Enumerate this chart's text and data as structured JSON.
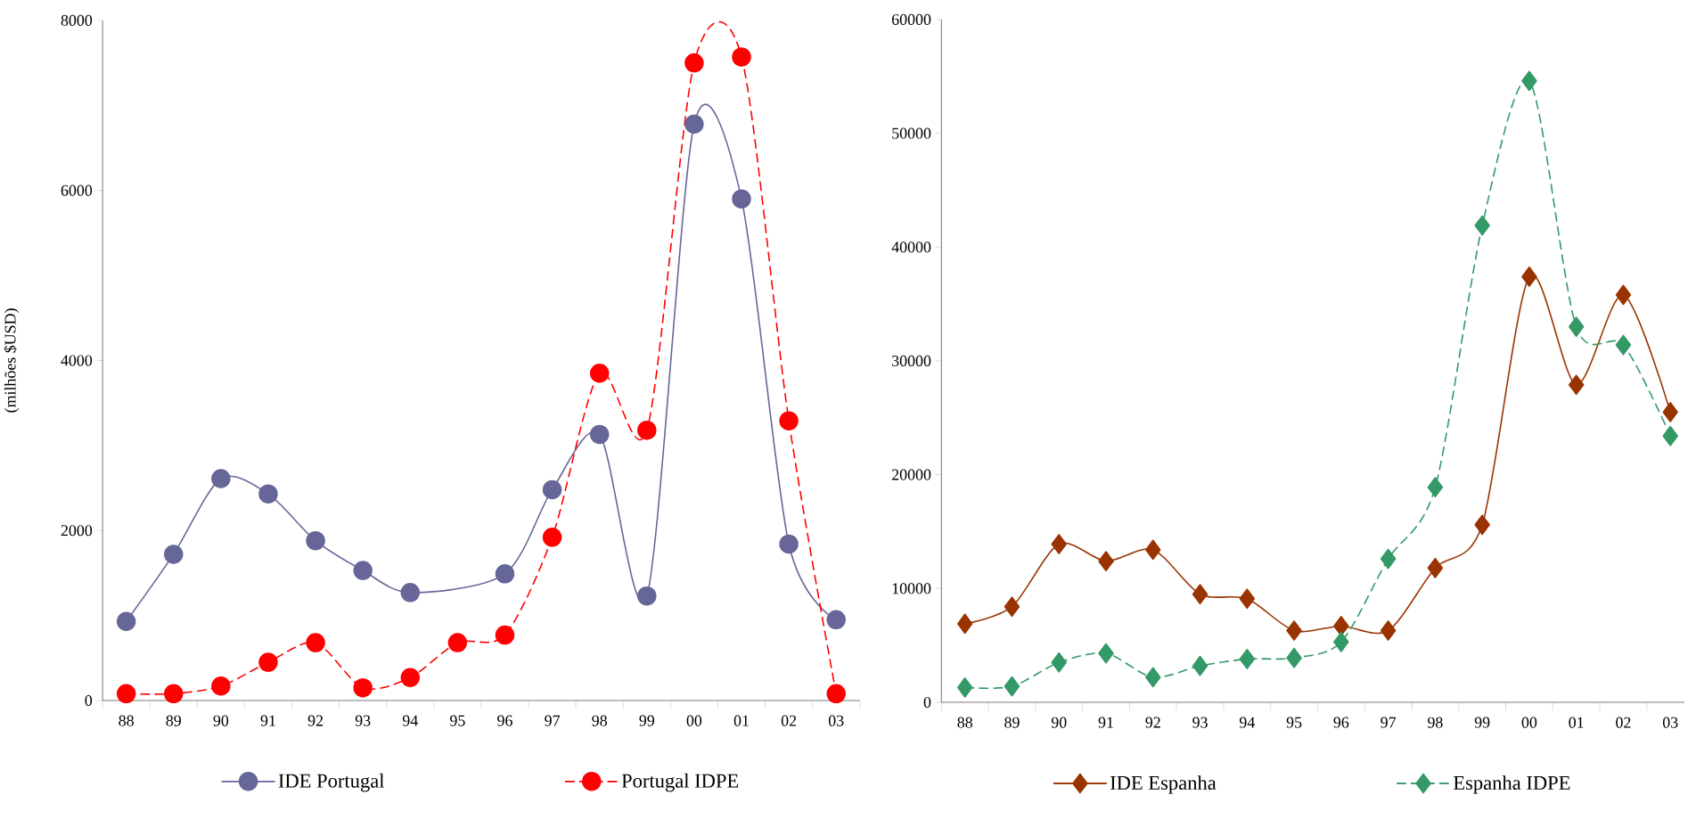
{
  "chart_data": [
    {
      "type": "line",
      "ylabel": "(milhões $USD)",
      "categories": [
        "88",
        "89",
        "90",
        "91",
        "92",
        "93",
        "94",
        "95",
        "96",
        "97",
        "98",
        "99",
        "00",
        "01",
        "02",
        "03"
      ],
      "ylim": [
        0,
        8000
      ],
      "yticks": [
        0,
        2000,
        4000,
        6000,
        8000
      ],
      "legend": "bottom",
      "series": [
        {
          "name": "IDE Portugal",
          "color": "#666699",
          "marker": "circle",
          "line_style": "solid",
          "values": [
            930,
            1720,
            2610,
            2430,
            1880,
            1530,
            1270,
            null,
            1490,
            2480,
            3130,
            1230,
            6780,
            5900,
            1840,
            950
          ]
        },
        {
          "name": "Portugal IDPE",
          "color": "#ff0000",
          "marker": "circle",
          "line_style": "dashed",
          "values": [
            80,
            80,
            170,
            450,
            680,
            150,
            270,
            680,
            770,
            1920,
            3850,
            3180,
            7500,
            7570,
            3290,
            80
          ]
        }
      ]
    },
    {
      "type": "line",
      "categories": [
        "88",
        "89",
        "90",
        "91",
        "92",
        "93",
        "94",
        "95",
        "96",
        "97",
        "98",
        "99",
        "00",
        "01",
        "02",
        "03"
      ],
      "ylim": [
        0,
        60000
      ],
      "yticks": [
        0,
        10000,
        20000,
        30000,
        40000,
        50000,
        60000
      ],
      "legend": "bottom",
      "series": [
        {
          "name": "IDE Espanha",
          "color": "#993300",
          "marker": "diamond",
          "line_style": "solid",
          "values": [
            6900,
            8400,
            13900,
            12400,
            13400,
            9500,
            9100,
            6300,
            6700,
            6300,
            11800,
            15600,
            37400,
            27900,
            35800,
            25500
          ]
        },
        {
          "name": "Espanha IDPE",
          "color": "#339966",
          "marker": "diamond",
          "line_style": "dashed",
          "values": [
            1300,
            1400,
            3500,
            4300,
            2200,
            3200,
            3800,
            3900,
            5300,
            12600,
            18900,
            41900,
            54600,
            33000,
            31400,
            23400
          ]
        }
      ]
    }
  ]
}
